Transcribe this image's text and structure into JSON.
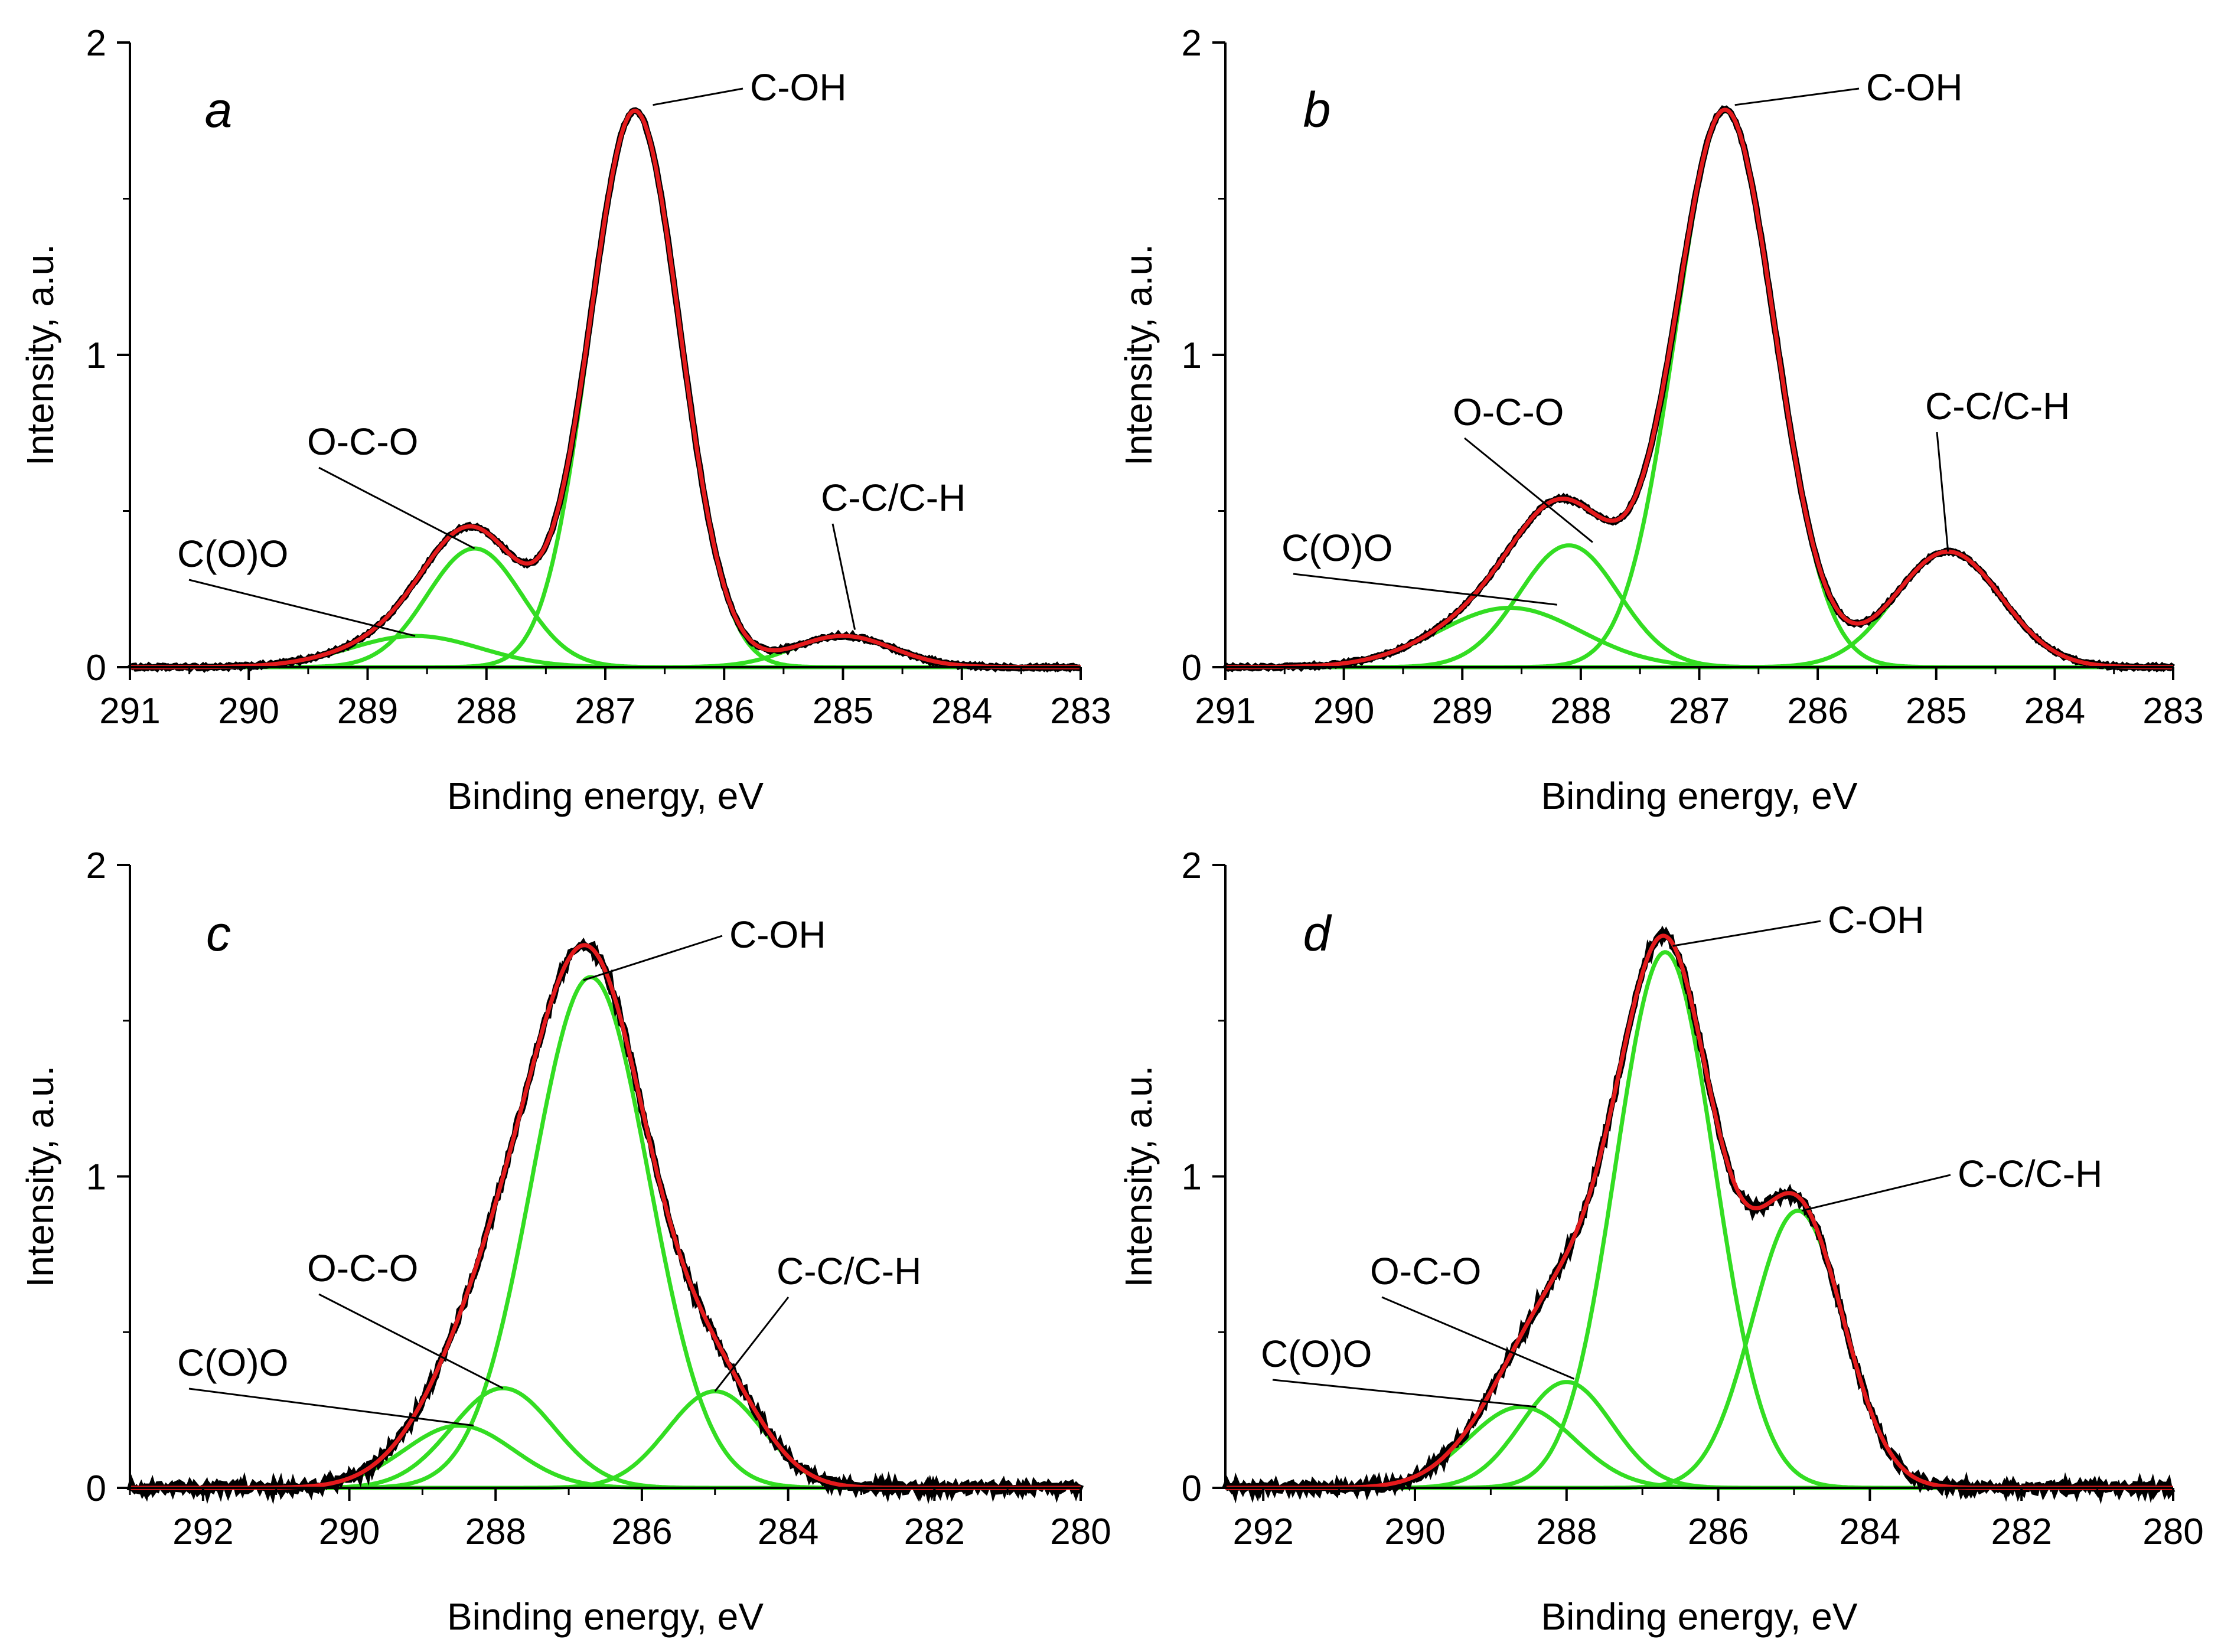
{
  "figure": {
    "colors": {
      "experimental": "#000000",
      "envelope": "#e41a1c",
      "component": "#33dd22"
    }
  },
  "chart_data": [
    {
      "type": "line",
      "panel_label": "a",
      "xlabel": "Binding energy, eV",
      "ylabel": "Intensity, a.u.",
      "xlim": [
        291,
        283
      ],
      "ylim": [
        0,
        2
      ],
      "x_ticks": [
        "291",
        "290",
        "289",
        "288",
        "287",
        "286",
        "285",
        "284",
        "283"
      ],
      "y_ticks": [
        "0",
        "1",
        "2"
      ],
      "grid": false,
      "components": [
        {
          "name": "C(O)O",
          "center": 288.6,
          "height": 0.1,
          "width": 0.55
        },
        {
          "name": "O-C-O",
          "center": 288.1,
          "height": 0.38,
          "width": 0.4
        },
        {
          "name": "C-OH",
          "center": 286.75,
          "height": 1.78,
          "width": 0.38
        },
        {
          "name": "C-C/C-H",
          "center": 285.0,
          "height": 0.1,
          "width": 0.42
        }
      ],
      "peak_labels": [
        {
          "text": "C-OH",
          "x": 286.6,
          "y": 1.8
        },
        {
          "text": "O-C-O",
          "x": 288.1,
          "y": 0.38
        },
        {
          "text": "C(O)O",
          "x": 288.6,
          "y": 0.1
        },
        {
          "text": "C-C/C-H",
          "x": 284.9,
          "y": 0.12
        }
      ]
    },
    {
      "type": "line",
      "panel_label": "b",
      "xlabel": "Binding energy, eV",
      "ylabel": "Intensity, a.u.",
      "xlim": [
        291,
        283
      ],
      "ylim": [
        0,
        2
      ],
      "x_ticks": [
        "291",
        "290",
        "289",
        "288",
        "287",
        "286",
        "285",
        "284",
        "283"
      ],
      "y_ticks": [
        "0",
        "1",
        "2"
      ],
      "grid": false,
      "components": [
        {
          "name": "C(O)O",
          "center": 288.6,
          "height": 0.19,
          "width": 0.6
        },
        {
          "name": "O-C-O",
          "center": 288.1,
          "height": 0.39,
          "width": 0.42
        },
        {
          "name": "C-OH",
          "center": 286.78,
          "height": 1.78,
          "width": 0.42
        },
        {
          "name": "C-C/C-H",
          "center": 284.9,
          "height": 0.37,
          "width": 0.45
        }
      ],
      "peak_labels": [
        {
          "text": "C-OH",
          "x": 286.7,
          "y": 1.8
        },
        {
          "text": "O-C-O",
          "x": 287.9,
          "y": 0.4
        },
        {
          "text": "C(O)O",
          "x": 288.2,
          "y": 0.2
        },
        {
          "text": "C-C/C-H",
          "x": 284.9,
          "y": 0.37
        }
      ]
    },
    {
      "type": "line",
      "panel_label": "c",
      "xlabel": "Binding energy, eV",
      "ylabel": "Intensity, a.u.",
      "xlim": [
        293,
        280
      ],
      "ylim": [
        0,
        2
      ],
      "x_ticks": [
        "292",
        "290",
        "288",
        "286",
        "284",
        "282",
        "280"
      ],
      "y_ticks": [
        "0",
        "1",
        "2"
      ],
      "grid": false,
      "components": [
        {
          "name": "C(O)O",
          "center": 288.5,
          "height": 0.2,
          "width": 0.75
        },
        {
          "name": "O-C-O",
          "center": 287.9,
          "height": 0.32,
          "width": 0.7
        },
        {
          "name": "C-OH",
          "center": 286.7,
          "height": 1.64,
          "width": 0.8
        },
        {
          "name": "C-C/C-H",
          "center": 285.0,
          "height": 0.31,
          "width": 0.65
        }
      ],
      "peak_labels": [
        {
          "text": "C-OH",
          "x": 286.8,
          "y": 1.63
        },
        {
          "text": "O-C-O",
          "x": 287.9,
          "y": 0.32
        },
        {
          "text": "C(O)O",
          "x": 288.3,
          "y": 0.2
        },
        {
          "text": "C-C/C-H",
          "x": 285.0,
          "y": 0.31
        }
      ]
    },
    {
      "type": "line",
      "panel_label": "d",
      "xlabel": "Binding energy, eV",
      "ylabel": "Intensity, a.u.",
      "xlim": [
        292.5,
        280
      ],
      "ylim": [
        0,
        2
      ],
      "x_ticks": [
        "292",
        "290",
        "288",
        "286",
        "284",
        "282",
        "280"
      ],
      "y_ticks": [
        "0",
        "1",
        "2"
      ],
      "grid": false,
      "components": [
        {
          "name": "C(O)O",
          "center": 288.6,
          "height": 0.26,
          "width": 0.7
        },
        {
          "name": "O-C-O",
          "center": 288.0,
          "height": 0.34,
          "width": 0.6
        },
        {
          "name": "C-OH",
          "center": 286.7,
          "height": 1.72,
          "width": 0.65
        },
        {
          "name": "C-C/C-H",
          "center": 284.95,
          "height": 0.89,
          "width": 0.6
        }
      ],
      "peak_labels": [
        {
          "text": "C-OH",
          "x": 286.6,
          "y": 1.74
        },
        {
          "text": "O-C-O",
          "x": 287.9,
          "y": 0.35
        },
        {
          "text": "C(O)O",
          "x": 288.4,
          "y": 0.26
        },
        {
          "text": "C-C/C-H",
          "x": 284.9,
          "y": 0.89
        }
      ]
    }
  ]
}
